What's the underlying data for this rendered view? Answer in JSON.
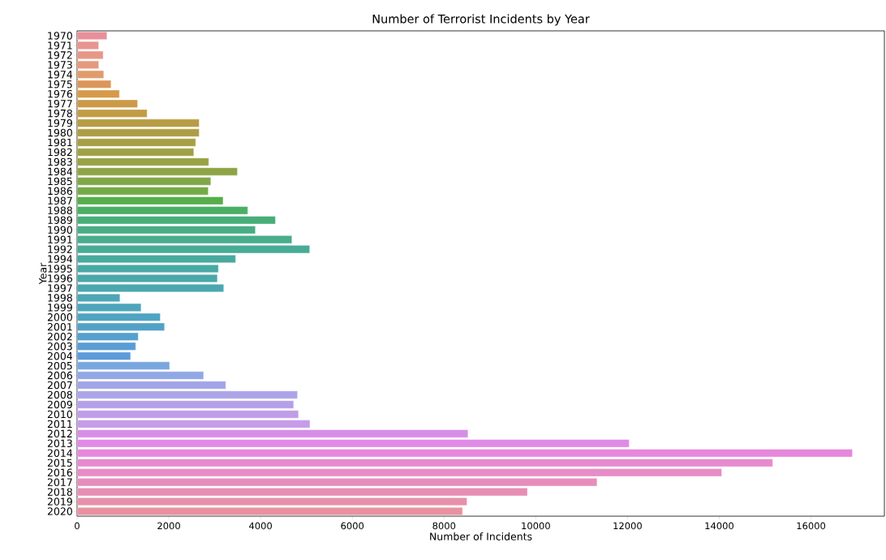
{
  "chart_data": {
    "type": "bar",
    "orientation": "horizontal",
    "title": "Number of Terrorist Incidents by Year",
    "xlabel": "Number of Incidents",
    "ylabel": "Year",
    "categories": [
      "1970",
      "1971",
      "1972",
      "1973",
      "1974",
      "1975",
      "1976",
      "1977",
      "1978",
      "1979",
      "1980",
      "1981",
      "1982",
      "1983",
      "1984",
      "1985",
      "1986",
      "1987",
      "1988",
      "1989",
      "1990",
      "1991",
      "1992",
      "1994",
      "1995",
      "1996",
      "1997",
      "1998",
      "1999",
      "2000",
      "2001",
      "2002",
      "2003",
      "2004",
      "2005",
      "2006",
      "2007",
      "2008",
      "2009",
      "2010",
      "2011",
      "2012",
      "2013",
      "2014",
      "2015",
      "2016",
      "2017",
      "2018",
      "2019",
      "2020"
    ],
    "values": [
      651,
      471,
      568,
      473,
      581,
      740,
      923,
      1319,
      1526,
      2662,
      2662,
      2586,
      2544,
      2870,
      3495,
      2915,
      2860,
      3183,
      3721,
      4324,
      3887,
      4683,
      5071,
      3456,
      3081,
      3058,
      3197,
      934,
      1395,
      1814,
      1906,
      1333,
      1278,
      1166,
      2017,
      2758,
      3242,
      4805,
      4721,
      4826,
      5076,
      8522,
      12036,
      16903,
      15165,
      14053,
      11335,
      9817,
      8500,
      8403
    ],
    "colors": [
      "#e8909a",
      "#e8948f",
      "#e79787",
      "#e6997c",
      "#e39b6c",
      "#dc9658",
      "#d69a4a",
      "#cc9a47",
      "#c29c45",
      "#b89c45",
      "#ae9d45",
      "#a89f45",
      "#a0a145",
      "#98a245",
      "#8fa445",
      "#80a748",
      "#74aa48",
      "#55ae4a",
      "#4aaf65",
      "#48ae78",
      "#48ad84",
      "#48ac8d",
      "#48ab95",
      "#48aa9d",
      "#49a9a4",
      "#49a8aa",
      "#4aa7b0",
      "#4ba6b5",
      "#4da5bb",
      "#4fa4c1",
      "#52a2c7",
      "#55a0cd",
      "#599dd4",
      "#5e9bda",
      "#7aa6e0",
      "#90a8e4",
      "#a2a4e8",
      "#aca4e8",
      "#b49fe8",
      "#c09de8",
      "#c69be8",
      "#d68ee6",
      "#e08ae6",
      "#e688dc",
      "#e78ad0",
      "#e78cc6",
      "#e78dbd",
      "#e78eb4",
      "#e790aa",
      "#e892a0"
    ],
    "xlim": [
      0,
      17600
    ],
    "xticks": [
      0,
      2000,
      4000,
      6000,
      8000,
      10000,
      12000,
      14000,
      16000
    ]
  }
}
